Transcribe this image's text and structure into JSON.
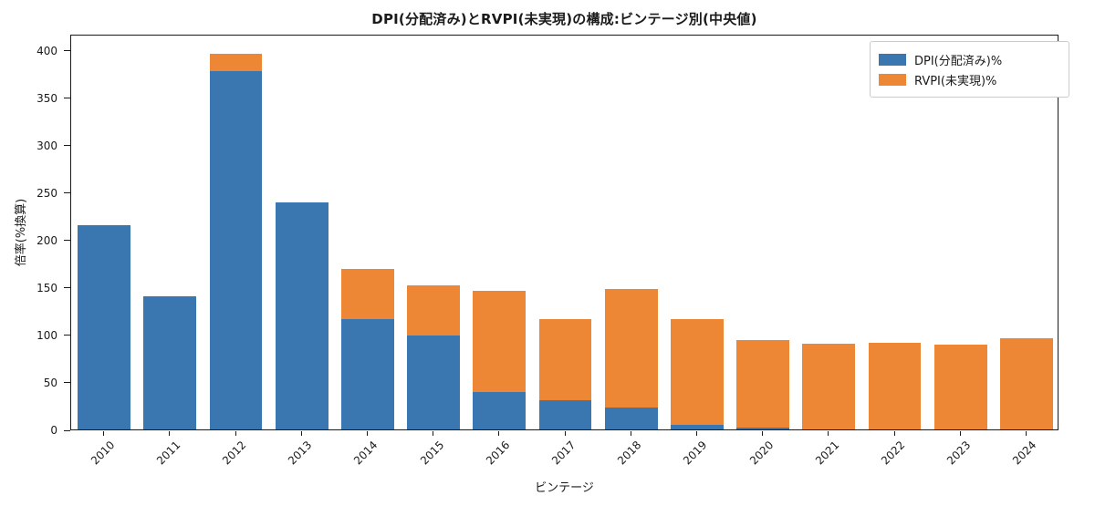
{
  "chart_data": {
    "type": "bar",
    "stacked": true,
    "title": "DPI(分配済み)とRVPI(未実現)の構成:ビンテージ別(中央値)",
    "xlabel": "ビンテージ",
    "ylabel": "倍率(%換算)",
    "categories": [
      "2010",
      "2011",
      "2012",
      "2013",
      "2014",
      "2015",
      "2016",
      "2017",
      "2018",
      "2019",
      "2020",
      "2021",
      "2022",
      "2023",
      "2024"
    ],
    "series": [
      {
        "name": "DPI(分配済み)%",
        "color": "#3a76b0",
        "values": [
          215,
          140,
          378,
          239,
          116,
          99,
          39,
          31,
          23,
          5,
          2,
          0,
          0,
          0,
          0
        ]
      },
      {
        "name": "RVPI(未実現)%",
        "color": "#ed8735",
        "values": [
          0,
          0,
          18,
          0,
          53,
          53,
          107,
          85,
          125,
          111,
          92,
          90,
          91,
          89,
          96
        ]
      }
    ],
    "yticks": [
      0,
      50,
      100,
      150,
      200,
      250,
      300,
      350,
      400
    ],
    "ylim": [
      0,
      417
    ],
    "grid": false,
    "legend_position": "upper right",
    "bar_width_fraction": 0.8
  }
}
